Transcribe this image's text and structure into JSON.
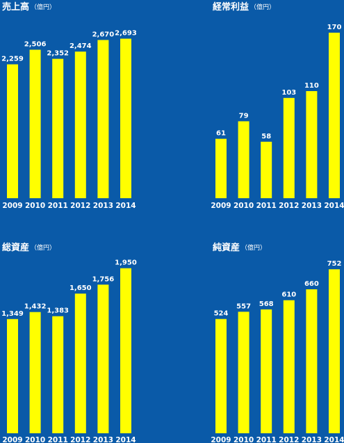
{
  "colors": {
    "background": "#0a5aa8",
    "bar": "#ffff00",
    "text": "#ffffff"
  },
  "chart_data": [
    {
      "type": "bar",
      "title": "売上高",
      "unit": "（億円）",
      "categories": [
        "2009",
        "2010",
        "2011",
        "2012",
        "2013",
        "2014"
      ],
      "values": [
        2259,
        2506,
        2352,
        2474,
        2670,
        2693
      ],
      "labels": [
        "2,259",
        "2,506",
        "2,352",
        "2,474",
        "2,670",
        "2,693"
      ],
      "ylim": [
        0,
        2800
      ]
    },
    {
      "type": "bar",
      "title": "経常利益",
      "unit": "（億円）",
      "categories": [
        "2009",
        "2010",
        "2011",
        "2012",
        "2013",
        "2014"
      ],
      "values": [
        61,
        79,
        58,
        103,
        110,
        170
      ],
      "labels": [
        "61",
        "79",
        "58",
        "103",
        "110",
        "170"
      ],
      "ylim": [
        0,
        180
      ]
    },
    {
      "type": "bar",
      "title": "総資産",
      "unit": "（億円）",
      "categories": [
        "2009",
        "2010",
        "2011",
        "2012",
        "2013",
        "2014"
      ],
      "values": [
        1349,
        1432,
        1383,
        1650,
        1756,
        1950
      ],
      "labels": [
        "1,349",
        "1,432",
        "1,383",
        "1,650",
        "1,756",
        "1,950"
      ],
      "ylim": [
        0,
        2000
      ]
    },
    {
      "type": "bar",
      "title": "純資産",
      "unit": "（億円）",
      "categories": [
        "2009",
        "2010",
        "2011",
        "2012",
        "2013",
        "2014"
      ],
      "values": [
        524,
        557,
        568,
        610,
        660,
        752
      ],
      "labels": [
        "524",
        "557",
        "568",
        "610",
        "660",
        "752"
      ],
      "ylim": [
        0,
        800
      ]
    }
  ]
}
